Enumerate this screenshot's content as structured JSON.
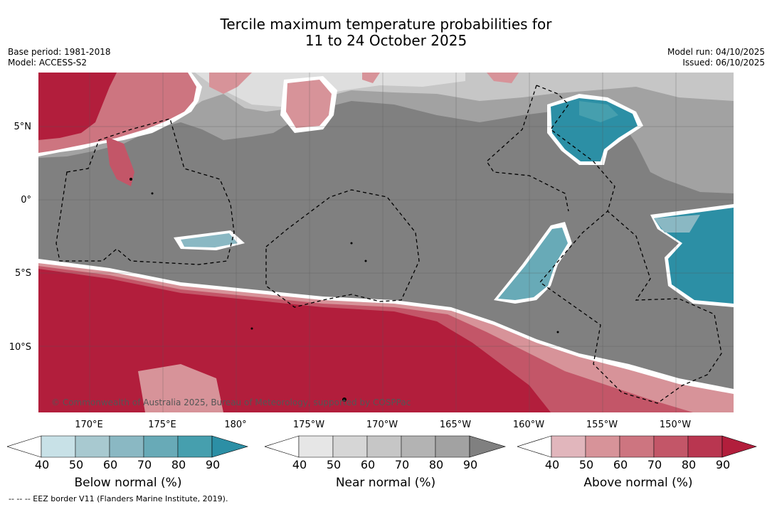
{
  "title": {
    "line1": "Tercile maximum temperature probabilities for",
    "line2": "11 to 24 October 2025"
  },
  "meta": {
    "base_period": "Base period: 1981-2018",
    "model": "Model: ACCESS-S2",
    "model_run": "Model run: 04/10/2025",
    "issued": "Issued: 06/10/2025"
  },
  "axes": {
    "lat_labels": [
      "5°N",
      "0°",
      "5°S",
      "10°S"
    ],
    "lon_labels": [
      "170°E",
      "175°E",
      "180°",
      "175°W",
      "170°W",
      "165°W",
      "160°W",
      "155°W",
      "150°W"
    ]
  },
  "colorbars": [
    {
      "title": "Below normal (%)",
      "ticks": [
        "40",
        "50",
        "60",
        "70",
        "80",
        "90"
      ],
      "colors": [
        "#c8e1e7",
        "#a8c9d0",
        "#8ab8c3",
        "#68aab7",
        "#469fae",
        "#2c8fa5"
      ]
    },
    {
      "title": "Near normal (%)",
      "ticks": [
        "40",
        "50",
        "60",
        "70",
        "80",
        "90"
      ],
      "colors": [
        "#e6e6e6",
        "#d6d6d6",
        "#c6c6c6",
        "#b3b3b3",
        "#a2a2a2",
        "#808080"
      ]
    },
    {
      "title": "Above normal (%)",
      "ticks": [
        "40",
        "50",
        "60",
        "70",
        "80",
        "90"
      ],
      "colors": [
        "#e1b6bc",
        "#d79399",
        "#cd7580",
        "#c35668",
        "#b93650",
        "#b21e3c"
      ]
    }
  ],
  "copyright": "© Commonwealth of Australia 2025, Bureau of Meteorology, supported by COSPPac",
  "footnote": "-- -- -- EEZ border V11 (Flanders Marine Institute, 2019)."
}
